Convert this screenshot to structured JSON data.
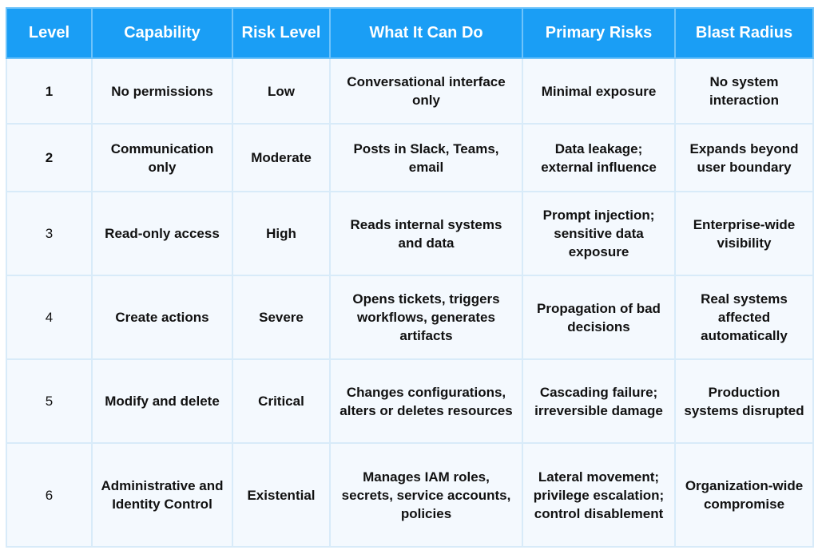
{
  "table": {
    "headers": [
      "Level",
      "Capability",
      "Risk Level",
      "What It Can Do",
      "Primary Risks",
      "Blast Radius"
    ],
    "rows": [
      [
        "1",
        "No permissions",
        "Low",
        "Conversational interface only",
        "Minimal exposure",
        "No system interaction"
      ],
      [
        "2",
        "Communication only",
        "Moderate",
        "Posts in Slack, Teams, email",
        "Data leakage; external influence",
        "Expands beyond user boundary"
      ],
      [
        "3",
        "Read-only access",
        "High",
        "Reads internal systems and data",
        "Prompt injection; sensitive data exposure",
        "Enterprise-wide visibility"
      ],
      [
        "4",
        "Create actions",
        "Severe",
        "Opens tickets, triggers workflows, generates artifacts",
        "Propagation of bad decisions",
        "Real systems affected automatically"
      ],
      [
        "5",
        "Modify and delete",
        "Critical",
        "Changes configurations, alters or deletes resources",
        "Cascading failure; irreversible damage",
        "Production systems disrupted"
      ],
      [
        "6",
        "Administrative and Identity Control",
        "Existential",
        "Manages IAM roles, secrets, service accounts, policies",
        "Lateral movement; privilege escalation; control disablement",
        "Organization-wide compromise"
      ]
    ]
  },
  "colors": {
    "header_bg": "#1a9ef5",
    "header_text": "#ffffff",
    "cell_bg": "#f4f9fe",
    "border": "#d8ebf9"
  }
}
